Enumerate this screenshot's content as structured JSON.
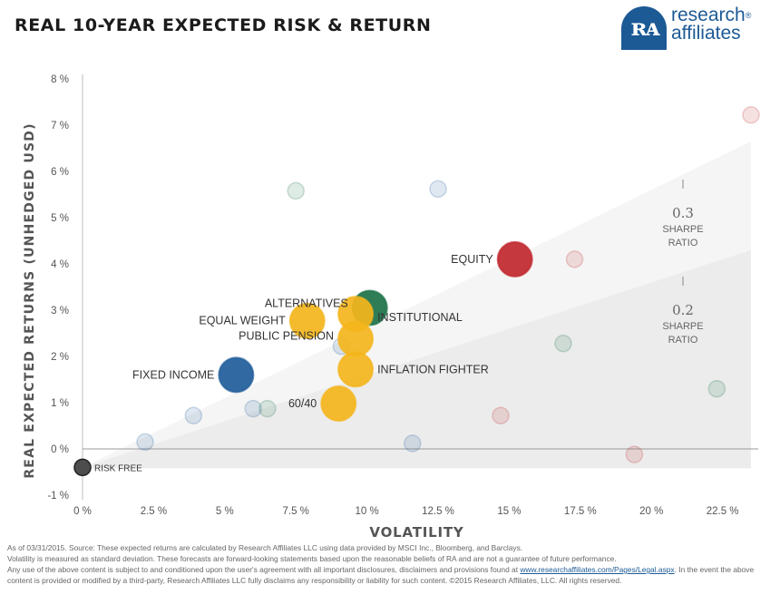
{
  "title": "REAL 10-YEAR EXPECTED RISK & RETURN",
  "logo": {
    "line1": "research",
    "line2": "affiliates",
    "mark": "ʀᴀ",
    "registered": "®"
  },
  "chart_data": {
    "type": "scatter",
    "title": "REAL 10-YEAR EXPECTED RISK & RETURN",
    "xlabel": "VOLATILITY",
    "ylabel": "REAL EXPECTED RETURNS (UNHEDGED USD)",
    "xlim": [
      0,
      23.5
    ],
    "ylim": [
      -1,
      8
    ],
    "xticks": [
      "0 %",
      "2.5 %",
      "5 %",
      "7.5 %",
      "10 %",
      "12.5 %",
      "15 %",
      "17.5 %",
      "20 %",
      "22.5 %"
    ],
    "yticks": [
      "-1 %",
      "0 %",
      "1 %",
      "2 %",
      "3 %",
      "4 %",
      "5 %",
      "6 %",
      "7 %",
      "8 %"
    ],
    "grid": false,
    "risk_free": {
      "label": "RISK FREE",
      "x": 0,
      "y": -0.4,
      "color": "#4d4d4d"
    },
    "sharpe_lines": [
      {
        "ratio": "0.3",
        "label_lines": [
          "SHARPE",
          "RATIO"
        ],
        "slope": 0.3
      },
      {
        "ratio": "0.2",
        "label_lines": [
          "SHARPE",
          "RATIO"
        ],
        "slope": 0.2
      }
    ],
    "portfolios": [
      {
        "label": "FIXED INCOME",
        "x": 5.4,
        "y": 1.6,
        "color": "#1f5d9a"
      },
      {
        "label": "EQUITY",
        "x": 15.2,
        "y": 4.1,
        "color": "#c0272d"
      },
      {
        "label": "ALTERNATIVES",
        "x": 10.1,
        "y": 3.05,
        "color": "#1d7249"
      },
      {
        "label": "EQUAL WEIGHT",
        "x": 7.9,
        "y": 2.77,
        "color": "#f4b51c"
      },
      {
        "label": "INSTITUTIONAL",
        "x": 9.6,
        "y": 2.92,
        "color": "#f4b51c"
      },
      {
        "label": "PUBLIC PENSION",
        "x": 9.6,
        "y": 2.38,
        "color": "#f4b51c"
      },
      {
        "label": "INFLATION FIGHTER",
        "x": 9.6,
        "y": 1.72,
        "color": "#f4b51c"
      },
      {
        "label": "60/40",
        "x": 9.0,
        "y": 0.98,
        "color": "#f4b51c"
      }
    ],
    "asset_classes": [
      {
        "x": 7.5,
        "y": 5.58,
        "color": "#1d7249"
      },
      {
        "x": 12.5,
        "y": 5.62,
        "color": "#1f5d9a"
      },
      {
        "x": 17.3,
        "y": 4.1,
        "color": "#c0272d"
      },
      {
        "x": 23.5,
        "y": 7.22,
        "color": "#c0272d"
      },
      {
        "x": 16.9,
        "y": 2.28,
        "color": "#1d7249"
      },
      {
        "x": 9.1,
        "y": 2.22,
        "color": "#1f5d9a"
      },
      {
        "x": 22.3,
        "y": 1.3,
        "color": "#1d7249"
      },
      {
        "x": 14.7,
        "y": 0.72,
        "color": "#c0272d"
      },
      {
        "x": 19.4,
        "y": -0.12,
        "color": "#c0272d"
      },
      {
        "x": 11.6,
        "y": 0.12,
        "color": "#1f5d9a"
      },
      {
        "x": 2.2,
        "y": 0.15,
        "color": "#1f5d9a"
      },
      {
        "x": 3.9,
        "y": 0.72,
        "color": "#1f5d9a"
      },
      {
        "x": 6.0,
        "y": 0.87,
        "color": "#1f5d9a"
      },
      {
        "x": 6.5,
        "y": 0.87,
        "color": "#1d7249"
      }
    ]
  },
  "footnote": {
    "line1": "As of 03/31/2015. Source: These expected returns are calculated by Research Affiliates LLC using data provided by MSCI Inc., Bloomberg, and Barclays.",
    "line2": "Volatility is measured as standard deviation. These forecasts are forward-looking statements based upon the reasonable beliefs of RA and are not a guarantee of future performance.",
    "line3_before": "Any use of the above content is subject to and conditioned upon the user's agreement with all important disclosures, disclaimers and provisions found at ",
    "link": "www.researchaffiliates.com/Pages/Legal.aspx",
    "line3_after": ". In the event the above content is provided or modified by a third-party, Research Affiliates LLC fully disclaims any responsibility or liability for such content. ©2015 Research Affiliates, LLC. All rights reserved."
  }
}
